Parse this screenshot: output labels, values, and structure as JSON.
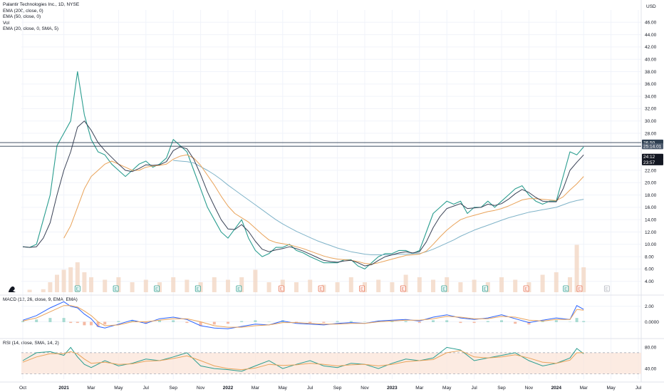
{
  "header": {
    "symbol_line": "Palantir Technologies Inc., 1D, NYSE",
    "indicators": [
      "EMA (200, close, 0)",
      "EMA (50, close, 0)",
      "Vol",
      "EMA (20, close, 0, SMA, 5)"
    ],
    "currency": "USD"
  },
  "panes": {
    "macd_label": "MACD (12, 26, close, 9, EMA, EMA)",
    "rsi_label": "RSI (14, close, SMA, 14, 2)"
  },
  "colors": {
    "price": "#2a9d8f",
    "price_down": "#e76f51",
    "ema200": "#7fb3c8",
    "ema50": "#e9a35a",
    "ema20": "#3a4256",
    "hline": "#2d3e50",
    "grid": "#f0f3fa",
    "rsi_band": "#fbe3d6",
    "volume": "#f3d7c4"
  },
  "chart_data": [
    {
      "type": "line",
      "pane": "price",
      "title": "",
      "ylim": [
        2.0,
        48.0
      ],
      "y_ticks": [
        "4.00",
        "6.00",
        "8.00",
        "10.00",
        "12.00",
        "14.00",
        "16.00",
        "18.00",
        "20.00",
        "22.00",
        "24.00",
        "26.00",
        "28.00",
        "30.00",
        "32.00",
        "34.00",
        "36.00",
        "38.00",
        "40.00",
        "42.00",
        "44.00",
        "46.00"
      ],
      "x_ticks": [
        "Oct",
        "2021",
        "Mar",
        "May",
        "Jul",
        "Sep",
        "Nov",
        "2022",
        "Mar",
        "May",
        "Jul",
        "Sep",
        "Nov",
        "2023",
        "Mar",
        "May",
        "Jul",
        "Sep",
        "Nov",
        "2024",
        "Mar",
        "May",
        "Jul"
      ],
      "x_tick_months": [
        0,
        3,
        5,
        7,
        9,
        11,
        13,
        15,
        17,
        19,
        21,
        23,
        25,
        27,
        29,
        31,
        33,
        35,
        37,
        39,
        41,
        43,
        45
      ],
      "price_months": [
        0,
        0.5,
        1,
        1.5,
        2,
        2.5,
        3,
        3.5,
        4,
        4.5,
        5,
        5.5,
        6,
        6.5,
        7,
        7.5,
        8,
        8.5,
        9,
        9.5,
        10,
        10.5,
        11,
        11.5,
        12,
        12.5,
        13,
        13.5,
        14,
        14.5,
        15,
        15.5,
        16,
        16.5,
        17,
        17.5,
        18,
        18.5,
        19,
        19.5,
        20,
        20.5,
        21,
        21.5,
        22,
        22.5,
        23,
        23.5,
        24,
        24.5,
        25,
        25.5,
        26,
        26.5,
        27,
        27.5,
        28,
        28.5,
        29,
        29.5,
        30,
        30.5,
        31,
        31.5,
        32,
        32.5,
        33,
        33.5,
        34,
        34.5,
        35,
        35.5,
        36,
        36.5,
        37,
        37.5,
        38,
        38.5,
        39,
        39.5,
        40,
        40.5,
        41
      ],
      "series": [
        {
          "key": "price",
          "values": [
            9.6,
            9.5,
            10,
            14,
            18,
            26,
            28,
            30,
            38,
            31,
            27,
            25,
            24.5,
            23,
            22,
            21,
            22,
            23,
            23.5,
            22.5,
            23,
            24,
            27,
            26,
            25,
            22,
            19,
            16,
            14,
            12,
            11,
            12.5,
            14,
            11,
            9,
            8,
            8.5,
            9.5,
            9.5,
            10,
            9,
            8.6,
            8,
            7.5,
            7,
            7,
            7,
            7.5,
            7.5,
            6.5,
            6,
            7,
            8,
            8.5,
            8.5,
            9,
            9,
            8.5,
            9,
            12,
            15,
            16,
            17,
            16.5,
            17,
            15,
            16,
            16,
            17,
            16,
            17,
            18,
            19,
            19.5,
            18,
            17,
            16.5,
            17,
            17,
            21,
            25,
            24.5,
            25.8
          ]
        },
        {
          "key": "ema200",
          "values": [
            null,
            null,
            null,
            null,
            null,
            null,
            null,
            null,
            null,
            null,
            null,
            null,
            null,
            null,
            null,
            null,
            null,
            null,
            null,
            null,
            null,
            null,
            23.6,
            23.5,
            23.4,
            23.2,
            22.6,
            22,
            21.3,
            20.5,
            19.6,
            18.8,
            18,
            17.2,
            16.4,
            15.6,
            14.8,
            14,
            13.3,
            12.7,
            12.1,
            11.6,
            11.1,
            10.6,
            10.2,
            9.8,
            9.4,
            9.1,
            8.8,
            8.6,
            8.4,
            8.3,
            8.3,
            8.3,
            8.3,
            8.4,
            8.4,
            8.5,
            8.5,
            8.8,
            9.2,
            9.7,
            10.2,
            10.7,
            11.3,
            11.8,
            12.3,
            12.7,
            13.1,
            13.5,
            13.9,
            14.3,
            14.6,
            14.9,
            15.2,
            15.4,
            15.6,
            15.8,
            16,
            16.4,
            16.8,
            17.1,
            17.3
          ]
        },
        {
          "key": "ema50",
          "values": [
            null,
            null,
            null,
            null,
            null,
            null,
            11,
            13,
            16,
            19,
            21,
            22,
            23,
            23.5,
            23,
            22.5,
            22,
            22,
            22.5,
            22.7,
            22.8,
            23,
            23.8,
            24.3,
            24.5,
            24,
            22.8,
            21.2,
            19.6,
            17.8,
            16.2,
            15,
            14.3,
            13.6,
            12.6,
            11.6,
            10.7,
            10.3,
            10.1,
            9.9,
            9.6,
            9.3,
            8.9,
            8.5,
            8.1,
            7.8,
            7.6,
            7.5,
            7.4,
            7.2,
            6.9,
            6.8,
            7,
            7.3,
            7.6,
            7.9,
            8.2,
            8.3,
            8.4,
            8.9,
            10,
            11.2,
            12.3,
            13.2,
            14,
            14.4,
            14.7,
            15,
            15.3,
            15.5,
            15.8,
            16.2,
            16.7,
            17.2,
            17.4,
            17.4,
            17.3,
            17.2,
            17.1,
            17.7,
            18.8,
            19.8,
            21
          ]
        },
        {
          "key": "ema20",
          "values": [
            9.6,
            9.5,
            9.6,
            11,
            13.5,
            18,
            22,
            25,
            29,
            30,
            28.5,
            26.5,
            25.2,
            24.1,
            23,
            22,
            21.8,
            22.3,
            22.9,
            22.8,
            22.9,
            23.4,
            25.2,
            25.8,
            25.5,
            23.8,
            21.3,
            18.5,
            16.2,
            14,
            12.5,
            12.4,
            13.2,
            12.1,
            10.5,
            9.2,
            8.8,
            9.1,
            9.3,
            9.6,
            9.3,
            8.9,
            8.4,
            7.9,
            7.4,
            7.2,
            7.1,
            7.3,
            7.4,
            7,
            6.5,
            6.7,
            7.4,
            8,
            8.3,
            8.6,
            8.8,
            8.6,
            8.8,
            10.4,
            12.7,
            14.5,
            15.8,
            16.2,
            16.6,
            15.8,
            15.9,
            16,
            16.5,
            16.3,
            16.6,
            17.3,
            18.2,
            18.9,
            18.4,
            17.6,
            17,
            16.9,
            16.9,
            19,
            22,
            23.3,
            24.5
          ]
        }
      ],
      "volume_months": [
        0.5,
        1.5,
        2,
        2.5,
        3,
        3.5,
        4,
        4.5,
        5,
        6,
        7,
        8,
        9,
        10,
        11,
        12,
        13,
        14,
        15,
        16,
        17,
        18,
        19,
        20,
        21,
        22,
        23,
        24,
        25,
        26,
        27,
        28,
        29,
        30,
        31,
        32,
        33,
        34,
        35,
        36,
        37,
        38,
        39,
        40,
        40.5,
        41
      ],
      "volume": [
        0.05,
        0.06,
        0.2,
        0.35,
        0.45,
        0.5,
        0.6,
        0.4,
        0.3,
        0.25,
        0.3,
        0.2,
        0.25,
        0.2,
        0.3,
        0.25,
        0.2,
        0.3,
        0.25,
        0.3,
        0.45,
        0.2,
        0.25,
        0.2,
        0.25,
        0.15,
        0.2,
        0.3,
        0.2,
        0.25,
        0.2,
        0.35,
        0.3,
        0.25,
        0.3,
        0.2,
        0.25,
        0.2,
        0.3,
        0.25,
        0.2,
        0.35,
        0.4,
        0.3,
        0.95,
        0.5
      ],
      "hlines": [
        {
          "value": 26.5,
          "label": "26.50"
        },
        {
          "value": 25.9,
          "label": "25:14.01"
        }
      ],
      "price_tags": [
        {
          "value": 26.5,
          "label": "26.50",
          "fill": "#2d3e50",
          "text": "#ffffff"
        },
        {
          "value": 25.9,
          "label": "25:14.01",
          "fill": "#4d5b6e",
          "text": "#ffffff"
        },
        {
          "value": 24.2,
          "label": "24:12",
          "fill": "#131722",
          "text": "#ffffff"
        },
        {
          "value": 23.3,
          "label": "23:57",
          "fill": "#131722",
          "text": "#ffffff"
        }
      ],
      "earnings_months": [
        4,
        6.8,
        9.8,
        12.8,
        15.8,
        18.9,
        21.8,
        24.8,
        27.8,
        30.8,
        33.8,
        36.8,
        39.7,
        40.7,
        42.7
      ],
      "earnings_labels": [
        "E",
        "E",
        "E",
        "E",
        "E",
        "E",
        "E",
        "E",
        "E",
        "E",
        "E",
        "E",
        "E",
        "E",
        "E"
      ],
      "earnings_colors": [
        "#2a9d8f",
        "#2a9d8f",
        "#2a9d8f",
        "#2a9d8f",
        "#2a9d8f",
        "#e76f51",
        "#e76f51",
        "#e76f51",
        "#e76f51",
        "#2a9d8f",
        "#2a9d8f",
        "#e76f51",
        "#2a9d8f",
        "#e76f51",
        "#b2b5be"
      ],
      "grid": true
    },
    {
      "type": "line",
      "pane": "macd",
      "ylim": [
        -1.7,
        2.9
      ],
      "y_ticks": [
        "2.00",
        "0.0000"
      ],
      "y_tick_values": [
        2.0,
        0.0
      ],
      "x_months": [
        0,
        1,
        2,
        3,
        3.5,
        4,
        4.5,
        5,
        5.5,
        6,
        7,
        8,
        9,
        10,
        11,
        12,
        13,
        14,
        15,
        16,
        17,
        18,
        19,
        20,
        21,
        22,
        23,
        24,
        25,
        26,
        27,
        28,
        29,
        30,
        31,
        32,
        33,
        34,
        35,
        36,
        37,
        38,
        39,
        40,
        40.5,
        41
      ],
      "series": [
        {
          "key": "macd",
          "values": [
            0.2,
            0.8,
            1.8,
            2.6,
            2.0,
            1.8,
            1.0,
            0.4,
            -0.6,
            -0.8,
            -0.3,
            0.2,
            -0.2,
            0.4,
            0.6,
            0.3,
            -0.5,
            -0.8,
            -0.9,
            -0.6,
            -0.3,
            -0.4,
            0.1,
            -0.2,
            -0.3,
            -0.4,
            -0.2,
            -0.1,
            -0.2,
            0.1,
            0.2,
            0.3,
            0.1,
            0.6,
            0.9,
            0.5,
            0.3,
            0.5,
            0.9,
            0.4,
            -0.1,
            0.2,
            0.5,
            0.3,
            2.1,
            1.6
          ]
        },
        {
          "key": "signal",
          "values": [
            0.1,
            0.5,
            1.3,
            2.1,
            2.1,
            1.9,
            1.4,
            0.8,
            0,
            -0.5,
            -0.4,
            0,
            0,
            0.2,
            0.4,
            0.4,
            0,
            -0.5,
            -0.7,
            -0.7,
            -0.5,
            -0.4,
            -0.1,
            -0.1,
            -0.2,
            -0.3,
            -0.3,
            -0.2,
            -0.2,
            0,
            0.1,
            0.2,
            0.2,
            0.4,
            0.7,
            0.6,
            0.4,
            0.4,
            0.7,
            0.6,
            0.2,
            0.1,
            0.3,
            0.3,
            1.6,
            1.5
          ]
        }
      ]
    },
    {
      "type": "line",
      "pane": "rsi",
      "ylim": [
        20,
        90
      ],
      "y_ticks": [
        "80.00",
        "40.00"
      ],
      "y_tick_values": [
        80,
        40
      ],
      "bands": [
        30,
        70
      ],
      "x_months": [
        0,
        1,
        2,
        3,
        3.5,
        4,
        4.5,
        5,
        6,
        7,
        8,
        9,
        10,
        11,
        12,
        13,
        14,
        15,
        16,
        17,
        18,
        19,
        20,
        21,
        22,
        23,
        24,
        25,
        26,
        27,
        28,
        29,
        30,
        31,
        32,
        33,
        34,
        35,
        36,
        37,
        38,
        39,
        40,
        40.5,
        41
      ],
      "series": [
        {
          "key": "rsi",
          "values": [
            55,
            70,
            72,
            65,
            80,
            62,
            48,
            42,
            55,
            45,
            50,
            58,
            55,
            62,
            70,
            45,
            40,
            38,
            35,
            45,
            55,
            40,
            48,
            55,
            45,
            42,
            50,
            48,
            40,
            50,
            58,
            55,
            60,
            80,
            75,
            55,
            60,
            65,
            70,
            55,
            45,
            50,
            60,
            78,
            68
          ]
        },
        {
          "key": "rsi_ma",
          "values": [
            52,
            62,
            68,
            68,
            72,
            68,
            58,
            50,
            52,
            48,
            49,
            54,
            55,
            59,
            64,
            55,
            45,
            40,
            38,
            41,
            48,
            46,
            47,
            50,
            48,
            45,
            47,
            48,
            45,
            48,
            53,
            55,
            57,
            70,
            74,
            62,
            60,
            62,
            66,
            60,
            52,
            50,
            56,
            70,
            70
          ]
        }
      ]
    }
  ]
}
